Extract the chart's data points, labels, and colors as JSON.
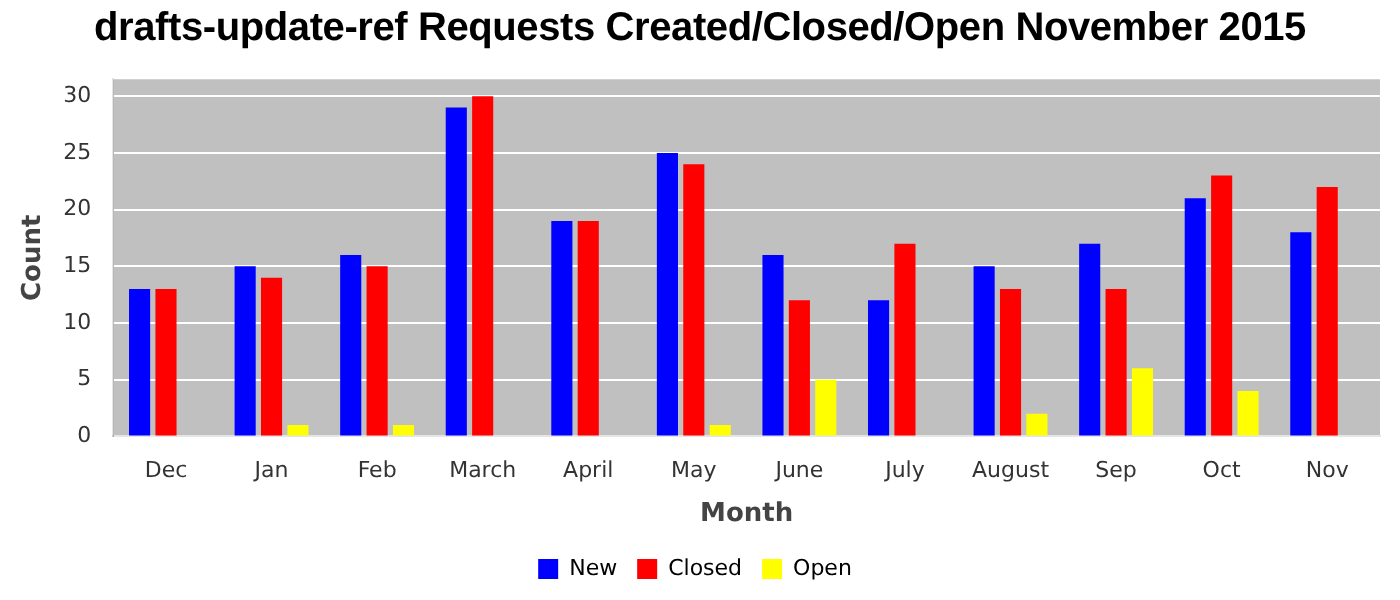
{
  "chart_data": {
    "type": "bar",
    "title": "drafts-update-ref Requests Created/Closed/Open November 2015",
    "xlabel": "Month",
    "ylabel": "Count",
    "categories": [
      "Dec",
      "Jan",
      "Feb",
      "March",
      "April",
      "May",
      "June",
      "July",
      "August",
      "Sep",
      "Oct",
      "Nov"
    ],
    "series": [
      {
        "name": "New",
        "color": "#0000ff",
        "values": [
          13,
          15,
          16,
          29,
          19,
          25,
          16,
          12,
          15,
          17,
          21,
          18
        ]
      },
      {
        "name": "Closed",
        "color": "#ff0000",
        "values": [
          13,
          14,
          15,
          30,
          19,
          24,
          12,
          17,
          13,
          13,
          23,
          22
        ]
      },
      {
        "name": "Open",
        "color": "#ffff00",
        "values": [
          0,
          1,
          1,
          0,
          0,
          1,
          5,
          0,
          2,
          6,
          4,
          0
        ]
      }
    ],
    "ylim": [
      0,
      31.5
    ],
    "yticks": [
      0,
      5,
      10,
      15,
      20,
      25,
      30
    ],
    "grid": "y",
    "legend": "bottom"
  }
}
